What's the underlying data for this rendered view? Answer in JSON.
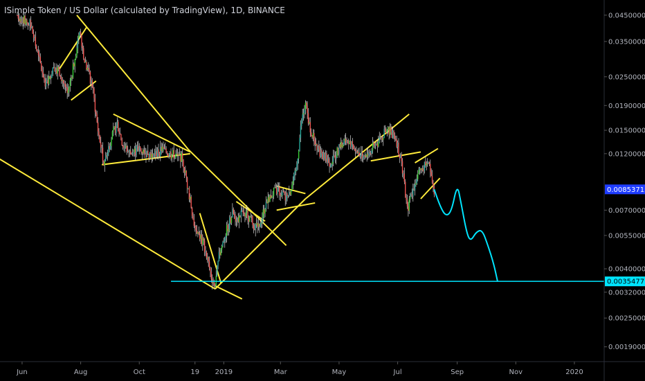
{
  "header": {
    "title": "ISimple Token / US Dollar (calculated by TradingView), 1D, BINANCE"
  },
  "colors": {
    "background": "#000000",
    "up_candle": "#26a69a",
    "up_candle_bright": "#33cc33",
    "down_candle": "#ef5350",
    "trendline": "#ffeb3b",
    "projection": "#00e5ff",
    "axis_text": "#b2b5be",
    "current_tag": "#1e3cff",
    "target_tag": "#00e5ff"
  },
  "chart_data": {
    "type": "candlestick",
    "scale": "log",
    "y_ticks": [
      {
        "value": 0.045,
        "label": "0.04500000"
      },
      {
        "value": 0.035,
        "label": "0.03500000"
      },
      {
        "value": 0.025,
        "label": "0.02500000"
      },
      {
        "value": 0.019,
        "label": "0.01900000"
      },
      {
        "value": 0.015,
        "label": "0.01500000"
      },
      {
        "value": 0.012,
        "label": "0.01200000"
      },
      {
        "value": 0.007,
        "label": "0.00700000"
      },
      {
        "value": 0.0055,
        "label": "0.00550000"
      },
      {
        "value": 0.004,
        "label": "0.00400000"
      },
      {
        "value": 0.0032,
        "label": "0.00320000"
      },
      {
        "value": 0.0025,
        "label": "0.00250000"
      },
      {
        "value": 0.0019,
        "label": "0.00190000"
      }
    ],
    "x_ticks": [
      {
        "day": 5,
        "label": "Jun"
      },
      {
        "day": 66,
        "label": "Aug"
      },
      {
        "day": 127,
        "label": "Oct"
      },
      {
        "day": 185,
        "label": "19"
      },
      {
        "day": 215,
        "label": "2019"
      },
      {
        "day": 274,
        "label": "Mar"
      },
      {
        "day": 335,
        "label": "May"
      },
      {
        "day": 396,
        "label": "Jul"
      },
      {
        "day": 458,
        "label": "Sep"
      },
      {
        "day": 519,
        "label": "Nov"
      },
      {
        "day": 580,
        "label": "2020"
      }
    ],
    "current_price": {
      "value": 0.00853713,
      "label": "0.00853713"
    },
    "target_price": {
      "value": 0.00354777,
      "label": "0.00354777"
    },
    "price_path": [
      [
        0,
        0.045
      ],
      [
        6,
        0.043
      ],
      [
        14,
        0.041
      ],
      [
        22,
        0.03
      ],
      [
        30,
        0.023
      ],
      [
        38,
        0.028
      ],
      [
        45,
        0.026
      ],
      [
        52,
        0.021
      ],
      [
        58,
        0.027
      ],
      [
        65,
        0.04
      ],
      [
        70,
        0.029
      ],
      [
        78,
        0.023
      ],
      [
        84,
        0.015
      ],
      [
        90,
        0.011
      ],
      [
        98,
        0.014
      ],
      [
        104,
        0.016
      ],
      [
        110,
        0.013
      ],
      [
        118,
        0.012
      ],
      [
        126,
        0.0125
      ],
      [
        134,
        0.0122
      ],
      [
        142,
        0.0118
      ],
      [
        150,
        0.0125
      ],
      [
        158,
        0.012
      ],
      [
        165,
        0.0118
      ],
      [
        172,
        0.0115
      ],
      [
        178,
        0.0085
      ],
      [
        184,
        0.0062
      ],
      [
        190,
        0.0055
      ],
      [
        196,
        0.0048
      ],
      [
        202,
        0.0037
      ],
      [
        206,
        0.0034
      ],
      [
        210,
        0.0045
      ],
      [
        216,
        0.0055
      ],
      [
        224,
        0.0068
      ],
      [
        230,
        0.0064
      ],
      [
        236,
        0.007
      ],
      [
        242,
        0.0065
      ],
      [
        248,
        0.006
      ],
      [
        254,
        0.0064
      ],
      [
        260,
        0.0078
      ],
      [
        266,
        0.0082
      ],
      [
        272,
        0.0085
      ],
      [
        278,
        0.008
      ],
      [
        284,
        0.0084
      ],
      [
        290,
        0.01
      ],
      [
        296,
        0.0165
      ],
      [
        300,
        0.019
      ],
      [
        304,
        0.016
      ],
      [
        310,
        0.013
      ],
      [
        318,
        0.0118
      ],
      [
        326,
        0.011
      ],
      [
        334,
        0.0125
      ],
      [
        342,
        0.0135
      ],
      [
        350,
        0.0128
      ],
      [
        358,
        0.0118
      ],
      [
        366,
        0.0122
      ],
      [
        374,
        0.0132
      ],
      [
        382,
        0.0145
      ],
      [
        388,
        0.015
      ],
      [
        394,
        0.014
      ],
      [
        398,
        0.012
      ],
      [
        402,
        0.0095
      ],
      [
        406,
        0.007
      ],
      [
        410,
        0.008
      ],
      [
        416,
        0.0095
      ],
      [
        422,
        0.0105
      ],
      [
        428,
        0.011
      ],
      [
        432,
        0.0092
      ],
      [
        434,
        0.00854
      ]
    ],
    "projection_path": [
      [
        434,
        0.00854
      ],
      [
        440,
        0.0073
      ],
      [
        446,
        0.0066
      ],
      [
        452,
        0.0069
      ],
      [
        458,
        0.009
      ],
      [
        462,
        0.0075
      ],
      [
        468,
        0.0056
      ],
      [
        472,
        0.0052
      ],
      [
        478,
        0.0057
      ],
      [
        484,
        0.0058
      ],
      [
        490,
        0.005
      ],
      [
        496,
        0.0042
      ],
      [
        500,
        0.00355
      ]
    ],
    "trendlines": [
      {
        "from": [
          -20,
          0.0115
        ],
        "to": [
          206,
          0.0033
        ]
      },
      {
        "from": [
          206,
          0.0034
        ],
        "to": [
          234,
          0.003
        ]
      },
      {
        "from": [
          62,
          0.045
        ],
        "to": [
          178,
          0.0125
        ]
      },
      {
        "from": [
          178,
          0.0125
        ],
        "to": [
          280,
          0.005
        ]
      },
      {
        "from": [
          88,
          0.0108
        ],
        "to": [
          180,
          0.012
        ]
      },
      {
        "from": [
          100,
          0.0175
        ],
        "to": [
          180,
          0.0122
        ]
      },
      {
        "from": [
          206,
          0.0033
        ],
        "to": [
          300,
          0.0078
        ]
      },
      {
        "from": [
          300,
          0.0078
        ],
        "to": [
          408,
          0.0175
        ]
      },
      {
        "from": [
          44,
          0.027
        ],
        "to": [
          72,
          0.04
        ]
      },
      {
        "from": [
          56,
          0.02
        ],
        "to": [
          82,
          0.024
        ]
      },
      {
        "from": [
          190,
          0.0068
        ],
        "to": [
          212,
          0.0035
        ]
      },
      {
        "from": [
          228,
          0.0076
        ],
        "to": [
          258,
          0.0063
        ]
      },
      {
        "from": [
          270,
          0.0088
        ],
        "to": [
          300,
          0.0082
        ]
      },
      {
        "from": [
          270,
          0.007
        ],
        "to": [
          310,
          0.0075
        ]
      },
      {
        "from": [
          368,
          0.0112
        ],
        "to": [
          420,
          0.0122
        ]
      },
      {
        "from": [
          414,
          0.011
        ],
        "to": [
          438,
          0.0126
        ]
      },
      {
        "from": [
          420,
          0.0078
        ],
        "to": [
          440,
          0.0095
        ]
      }
    ],
    "target_line": {
      "from_day": 160,
      "to_day": 600,
      "value": 0.00354777
    },
    "x_range": [
      -18,
      611
    ],
    "y_range_log": [
      0.00165,
      0.052
    ],
    "grid": false,
    "legend": "none"
  }
}
